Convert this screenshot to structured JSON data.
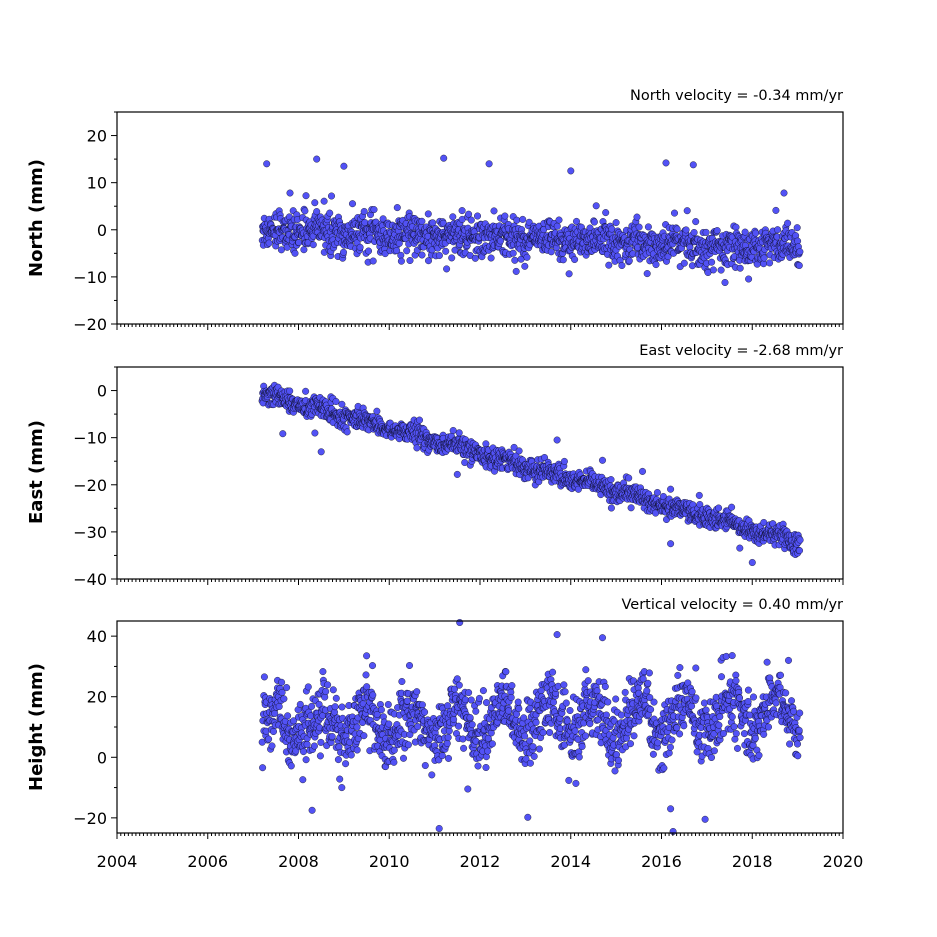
{
  "chart_data": [
    {
      "type": "scatter",
      "velocity_label": "North velocity = -0.34 mm/yr",
      "ylabel": "North (mm)",
      "xlim": [
        2004,
        2020
      ],
      "ylim": [
        -20,
        25
      ],
      "yticks": [
        20,
        10,
        0,
        -10,
        -20
      ],
      "ytick_labels": [
        "20",
        "10",
        "0",
        "−10",
        "−20"
      ],
      "x_start": 2007.2,
      "x_end": 2019.05,
      "trend_start": 0.0,
      "trend_slope": -0.34,
      "noise_sd": 2.0,
      "seasonal_amp": 0.6,
      "point_count": 1500,
      "outliers": [
        [
          2007.3,
          14.0
        ],
        [
          2008.4,
          15.0
        ],
        [
          2009.0,
          13.5
        ],
        [
          2011.2,
          15.2
        ],
        [
          2012.2,
          14.0
        ],
        [
          2014.0,
          12.5
        ],
        [
          2016.1,
          14.2
        ],
        [
          2016.7,
          13.8
        ],
        [
          2017.4,
          -11.2
        ],
        [
          2018.7,
          7.8
        ]
      ]
    },
    {
      "type": "scatter",
      "velocity_label": "East velocity = -2.68 mm/yr",
      "ylabel": "East (mm)",
      "xlim": [
        2004,
        2020
      ],
      "ylim": [
        -40,
        5
      ],
      "yticks": [
        0,
        -10,
        -20,
        -30,
        -40
      ],
      "ytick_labels": [
        "0",
        "−10",
        "−20",
        "−30",
        "−40"
      ],
      "x_start": 2007.2,
      "x_end": 2019.05,
      "trend_start": -0.5,
      "trend_slope": -2.68,
      "noise_sd": 1.1,
      "seasonal_amp": 0.5,
      "point_count": 1500,
      "outliers": [
        [
          2008.5,
          -13.0
        ],
        [
          2011.5,
          -17.8
        ],
        [
          2013.7,
          -10.5
        ],
        [
          2014.7,
          -14.8
        ],
        [
          2016.2,
          -32.5
        ],
        [
          2018.0,
          -36.5
        ]
      ]
    },
    {
      "type": "scatter",
      "velocity_label": "Vertical velocity = 0.40 mm/yr",
      "ylabel": "Height (mm)",
      "xlim": [
        2004,
        2020
      ],
      "ylim": [
        -25,
        45
      ],
      "yticks": [
        40,
        20,
        0,
        -20
      ],
      "ytick_labels": [
        "40",
        "20",
        "0",
        "−20"
      ],
      "x_start": 2007.2,
      "x_end": 2019.05,
      "trend_start": 10.0,
      "trend_slope": 0.4,
      "noise_sd": 5.5,
      "seasonal_amp": 6.0,
      "point_count": 1500,
      "outliers": [
        [
          2009.5,
          33.5
        ],
        [
          2011.1,
          -23.5
        ],
        [
          2013.7,
          40.5
        ],
        [
          2014.7,
          39.5
        ],
        [
          2016.2,
          -17.0
        ],
        [
          2018.8,
          32.0
        ],
        [
          2008.3,
          -17.5
        ]
      ]
    }
  ],
  "shared_x": {
    "xticks": [
      2004,
      2006,
      2008,
      2010,
      2012,
      2014,
      2016,
      2018,
      2020
    ],
    "xtick_labels": [
      "2004",
      "2006",
      "2008",
      "2010",
      "2012",
      "2014",
      "2016",
      "2018",
      "2020"
    ]
  },
  "colors": {
    "marker_fill": "#5252f5",
    "marker_edge": "#000000"
  }
}
